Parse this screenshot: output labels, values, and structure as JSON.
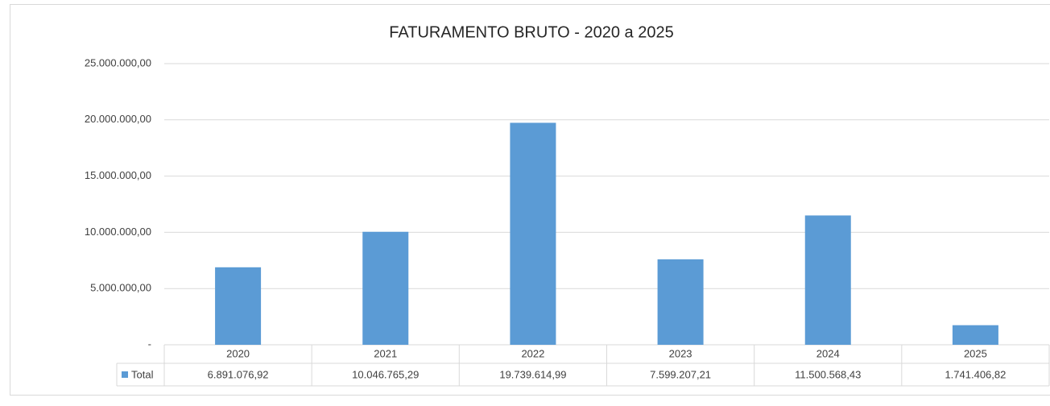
{
  "chart_data": {
    "type": "bar",
    "title": "FATURAMENTO BRUTO - 2020 a 2025",
    "categories": [
      "2020",
      "2021",
      "2022",
      "2023",
      "2024",
      "2025"
    ],
    "series": [
      {
        "name": "Total",
        "color": "#5b9bd5",
        "values": [
          6891076.92,
          10046765.29,
          19739614.99,
          7599207.21,
          11500568.43,
          1741406.82
        ],
        "value_labels": [
          "6.891.076,92",
          "10.046.765,29",
          "19.739.614,99",
          "7.599.207,21",
          "11.500.568,43",
          "1.741.406,82"
        ]
      }
    ],
    "ylim": [
      0,
      25000000
    ],
    "yticks": [
      {
        "value": 0,
        "label": "-"
      },
      {
        "value": 5000000,
        "label": "5.000.000,00"
      },
      {
        "value": 10000000,
        "label": "10.000.000,00"
      },
      {
        "value": 15000000,
        "label": "15.000.000,00"
      },
      {
        "value": 20000000,
        "label": "20.000.000,00"
      },
      {
        "value": 25000000,
        "label": "25.000.000,00"
      }
    ],
    "grid": true
  }
}
